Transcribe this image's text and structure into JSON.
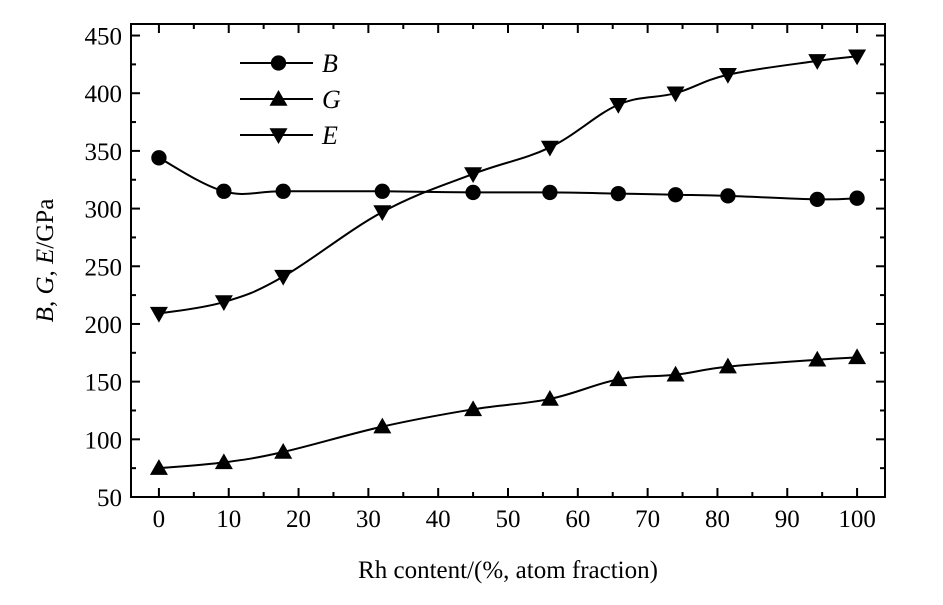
{
  "chart_data": {
    "type": "line",
    "xlabel": "Rh content/(%, atom fraction)",
    "ylabel_parts": [
      "B",
      ", ",
      "G",
      ", ",
      "E",
      "/GPa"
    ],
    "xlim": [
      -4,
      104
    ],
    "ylim": [
      50,
      460
    ],
    "xticks": [
      0,
      10,
      20,
      30,
      40,
      50,
      60,
      70,
      80,
      90,
      100
    ],
    "yticks": [
      50,
      100,
      150,
      200,
      250,
      300,
      350,
      400,
      450
    ],
    "legend_position": "top-left",
    "grid": false,
    "series": [
      {
        "name": "B",
        "marker": "circle",
        "x": [
          0,
          9.3,
          17.8,
          32,
          45,
          56,
          65.8,
          74,
          81.5,
          94.3,
          100
        ],
        "y": [
          344,
          315,
          315,
          315,
          314,
          314,
          313,
          312,
          311,
          308,
          309
        ]
      },
      {
        "name": "G",
        "marker": "triangle-up",
        "x": [
          0,
          9.3,
          17.8,
          32,
          45,
          56,
          65.8,
          74,
          81.5,
          94.3,
          100
        ],
        "y": [
          75,
          80,
          89,
          111,
          126,
          135,
          152,
          156,
          163,
          169,
          171
        ]
      },
      {
        "name": "E",
        "marker": "triangle-down",
        "x": [
          0,
          9.3,
          17.8,
          32,
          45,
          56,
          65.8,
          74,
          81.5,
          94.3,
          100
        ],
        "y": [
          209,
          219,
          241,
          297,
          330,
          353,
          390,
          400,
          416,
          428,
          432
        ]
      }
    ]
  }
}
